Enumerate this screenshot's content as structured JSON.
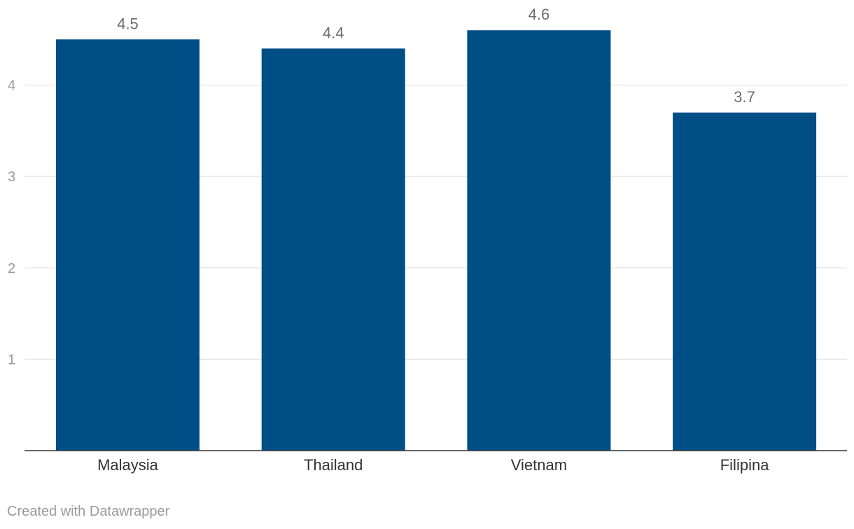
{
  "chart_data": {
    "type": "bar",
    "title": "",
    "xlabel": "",
    "ylabel": "",
    "categories": [
      "Malaysia",
      "Thailand",
      "Vietnam",
      "Filipina"
    ],
    "values": [
      4.5,
      4.4,
      4.6,
      3.7
    ],
    "value_labels": [
      "4.5",
      "4.4",
      "4.6",
      "3.7"
    ],
    "ylim": [
      0,
      4.6
    ],
    "yticks": [
      1,
      2,
      3,
      4
    ],
    "ytick_labels": [
      "1",
      "2",
      "3",
      "4"
    ],
    "grid": true,
    "bar_color": "#004e86"
  },
  "footer": {
    "credit": "Created with Datawrapper"
  }
}
